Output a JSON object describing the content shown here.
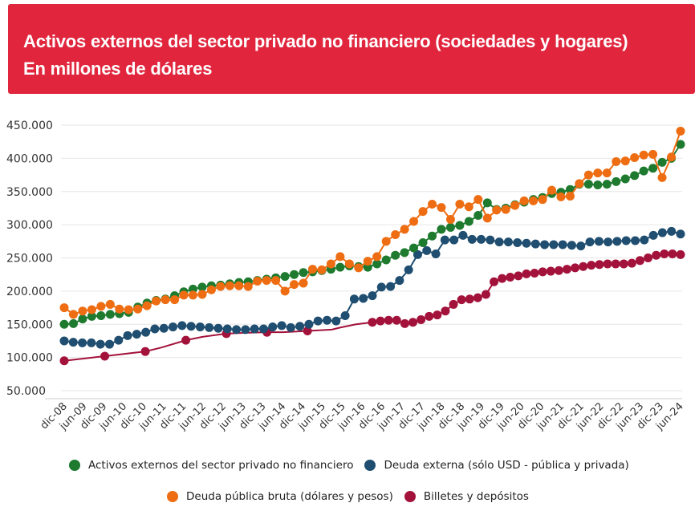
{
  "header": {
    "title_line1": "Activos externos del sector privado no financiero (sociedades y hogares)",
    "title_line2": "En millones de dólares"
  },
  "colors": {
    "header_bg": "#e0253d",
    "activos": "#1e7a2e",
    "deuda_externa": "#1f4e70",
    "deuda_publica": "#ee6d12",
    "billetes": "#a3123a"
  },
  "chart_data": {
    "type": "line",
    "title": "Activos externos del sector privado no financiero (sociedades y hogares)",
    "subtitle": "En millones de dólares",
    "ylim": [
      50000,
      450000
    ],
    "yticks": [
      "50.000",
      "100.000",
      "150.000",
      "200.000",
      "250.000",
      "300.000",
      "350.000",
      "400.000",
      "450.000"
    ],
    "x_start": "dic-08",
    "x_end": "jun-24",
    "xticks": [
      "dic-08",
      "jun-09",
      "dic-09",
      "jun-10",
      "dic-10",
      "jun-11",
      "dic-11",
      "jun-12",
      "dic-12",
      "jun-13",
      "dic-13",
      "jun-14",
      "dic-14",
      "jun-15",
      "dic-15",
      "jun-16",
      "dic-16",
      "jun-17",
      "dic-17",
      "jun-18",
      "dic-18",
      "jun-19",
      "dic-19",
      "jun-20",
      "dic-20",
      "jun-21",
      "dic-21",
      "jun-22",
      "dic-22",
      "jun-23",
      "dic-23",
      "jun-24"
    ],
    "grid": true,
    "legend_position": "bottom",
    "series": [
      {
        "name": "Activos externos del sector privado no financiero",
        "color": "#1e7a2e",
        "values": [
          150000,
          151000,
          158000,
          162000,
          163000,
          165000,
          166000,
          168000,
          176000,
          182000,
          186000,
          188000,
          193000,
          199000,
          203000,
          206000,
          208000,
          209000,
          211000,
          213000,
          214000,
          216000,
          218000,
          220000,
          222000,
          225000,
          228000,
          229000,
          231000,
          233000,
          236000,
          238000,
          237000,
          236000,
          241000,
          247000,
          254000,
          258000,
          265000,
          273000,
          283000,
          293000,
          296000,
          299000,
          305000,
          314000,
          333000,
          323000,
          325000,
          330000,
          334000,
          338000,
          341000,
          347000,
          349000,
          353000,
          361000,
          361000,
          360000,
          361000,
          365000,
          369000,
          374000,
          381000,
          385000,
          394000,
          400000,
          421000
        ]
      },
      {
        "name": "Deuda externa (sólo USD - pública y privada)",
        "color": "#1f4e70",
        "points": [
          [
            0,
            125000
          ],
          [
            1,
            123000
          ],
          [
            2,
            122000
          ],
          [
            3,
            122000
          ],
          [
            4,
            120000
          ],
          [
            5,
            120000
          ],
          [
            6,
            126000
          ],
          [
            7,
            133000
          ],
          [
            8,
            135000
          ],
          [
            9,
            138000
          ],
          [
            10,
            143000
          ],
          [
            11,
            144000
          ],
          [
            12,
            146000
          ],
          [
            13,
            148000
          ],
          [
            14,
            147000
          ],
          [
            15,
            146000
          ],
          [
            16,
            145000
          ],
          [
            17,
            144000
          ],
          [
            18,
            143000
          ],
          [
            19,
            142000
          ],
          [
            20,
            142000
          ],
          [
            21,
            143000
          ],
          [
            22,
            143000
          ],
          [
            23,
            146000
          ],
          [
            24,
            148000
          ],
          [
            25,
            145000
          ],
          [
            26,
            147000
          ],
          [
            27,
            150000
          ],
          [
            28,
            155000
          ],
          [
            29,
            156000
          ],
          [
            30,
            155000
          ],
          [
            31,
            163000
          ],
          [
            32,
            188000
          ],
          [
            33,
            189000
          ],
          [
            34,
            193000
          ],
          [
            35,
            206000
          ],
          [
            36,
            207000
          ],
          [
            37,
            216000
          ],
          [
            38,
            232000
          ],
          [
            39,
            255000
          ],
          [
            40,
            261000
          ],
          [
            41,
            256000
          ],
          [
            42,
            277000
          ],
          [
            43,
            277000
          ],
          [
            44,
            284000
          ],
          [
            45,
            278000
          ],
          [
            46,
            278000
          ],
          [
            47,
            277000
          ],
          [
            48,
            274000
          ],
          [
            49,
            274000
          ],
          [
            50,
            273000
          ],
          [
            51,
            272000
          ],
          [
            52,
            271000
          ],
          [
            53,
            270000
          ],
          [
            54,
            270000
          ],
          [
            55,
            270000
          ],
          [
            56,
            269000
          ],
          [
            57,
            268000
          ],
          [
            58,
            274000
          ],
          [
            59,
            275000
          ],
          [
            60,
            274000
          ],
          [
            61,
            275000
          ],
          [
            62,
            276000
          ],
          [
            63,
            276000
          ],
          [
            64,
            277000
          ],
          [
            65,
            284000
          ],
          [
            66,
            288000
          ],
          [
            67,
            290000
          ],
          [
            68,
            286000
          ]
        ]
      },
      {
        "name": "Deuda pública bruta (dólares y pesos)",
        "color": "#ee6d12",
        "values": [
          175000,
          165000,
          170000,
          172000,
          177000,
          180000,
          173000,
          172000,
          173000,
          178000,
          185000,
          187000,
          187000,
          194000,
          194000,
          195000,
          202000,
          207000,
          208000,
          208000,
          207000,
          215000,
          216000,
          216000,
          200000,
          210000,
          212000,
          233000,
          232000,
          241000,
          252000,
          241000,
          235000,
          245000,
          252000,
          275000,
          285000,
          293000,
          305000,
          320000,
          331000,
          326000,
          308000,
          331000,
          327000,
          338000,
          310000,
          322000,
          323000,
          329000,
          336000,
          336000,
          338000,
          352000,
          342000,
          343000,
          362000,
          375000,
          378000,
          378000,
          395000,
          396000,
          401000,
          405000,
          406000,
          371000,
          402000,
          441000
        ]
      },
      {
        "name": "Billetes y depósitos",
        "color": "#a3123a",
        "points": [
          [
            0,
            95000
          ],
          [
            5,
            102000
          ],
          [
            10,
            109000
          ],
          [
            12,
            115000
          ],
          [
            15,
            126000
          ],
          [
            17,
            131000
          ],
          [
            20,
            136000
          ],
          [
            22,
            137000
          ],
          [
            25,
            138000
          ],
          [
            27,
            138000
          ],
          [
            30,
            140000
          ],
          [
            33,
            142000
          ],
          [
            34,
            145000
          ],
          [
            36,
            150000
          ],
          [
            38,
            153000
          ],
          [
            39,
            155000
          ],
          [
            40,
            156000
          ],
          [
            41,
            156000
          ],
          [
            42,
            151000
          ],
          [
            43,
            153000
          ],
          [
            44,
            157000
          ],
          [
            45,
            162000
          ],
          [
            46,
            164000
          ],
          [
            47,
            170000
          ],
          [
            48,
            180000
          ],
          [
            49,
            187000
          ],
          [
            50,
            188000
          ],
          [
            51,
            190000
          ],
          [
            52,
            195000
          ],
          [
            53,
            214000
          ],
          [
            54,
            219000
          ],
          [
            55,
            221000
          ],
          [
            56,
            223000
          ],
          [
            57,
            226000
          ],
          [
            58,
            227000
          ],
          [
            59,
            229000
          ],
          [
            60,
            230000
          ],
          [
            61,
            231000
          ],
          [
            62,
            233000
          ],
          [
            63,
            235000
          ],
          [
            64,
            237000
          ],
          [
            65,
            239000
          ],
          [
            66,
            240000
          ],
          [
            67,
            241000
          ],
          [
            68,
            241000
          ],
          [
            69,
            241000
          ],
          [
            70,
            242000
          ],
          [
            71,
            246000
          ],
          [
            72,
            250000
          ],
          [
            73,
            254000
          ],
          [
            74,
            256000
          ],
          [
            75,
            256000
          ],
          [
            76,
            255000
          ]
        ]
      }
    ]
  },
  "legend": {
    "item1": "Activos externos del sector privado no financiero",
    "item2": "Deuda externa (sólo USD - pública y privada)",
    "item3": "Deuda pública bruta (dólares y pesos)",
    "item4": "Billetes y depósitos"
  }
}
